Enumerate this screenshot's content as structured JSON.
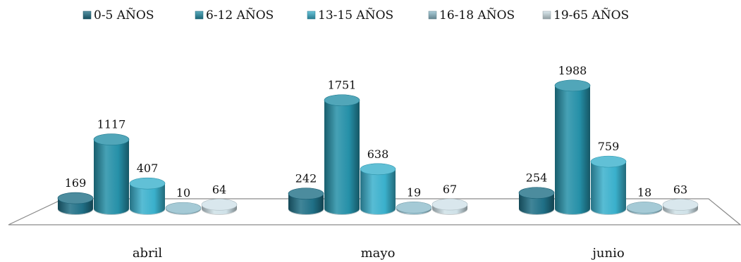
{
  "chart_data": {
    "type": "bar",
    "style": "3d-cylinder",
    "title": "",
    "xlabel": "",
    "ylabel": "",
    "categories": [
      "abril",
      "mayo",
      "junio"
    ],
    "series": [
      {
        "name": "0-5 AÑOS",
        "color": "#1f6f86",
        "values": [
          169,
          242,
          254
        ]
      },
      {
        "name": "6-12 AÑOS",
        "color": "#2590a8",
        "values": [
          1117,
          1751,
          1988
        ]
      },
      {
        "name": "13-15 AÑOS",
        "color": "#3ab0cc",
        "values": [
          407,
          638,
          759
        ]
      },
      {
        "name": "16-18 AÑOS",
        "color": "#8fbdcc",
        "values": [
          10,
          19,
          18
        ]
      },
      {
        "name": "19-65 AÑOS",
        "color": "#cfe1e8",
        "values": [
          64,
          67,
          63
        ]
      }
    ],
    "ylim": [
      0,
      2100
    ],
    "grid": false,
    "legend": "top"
  }
}
